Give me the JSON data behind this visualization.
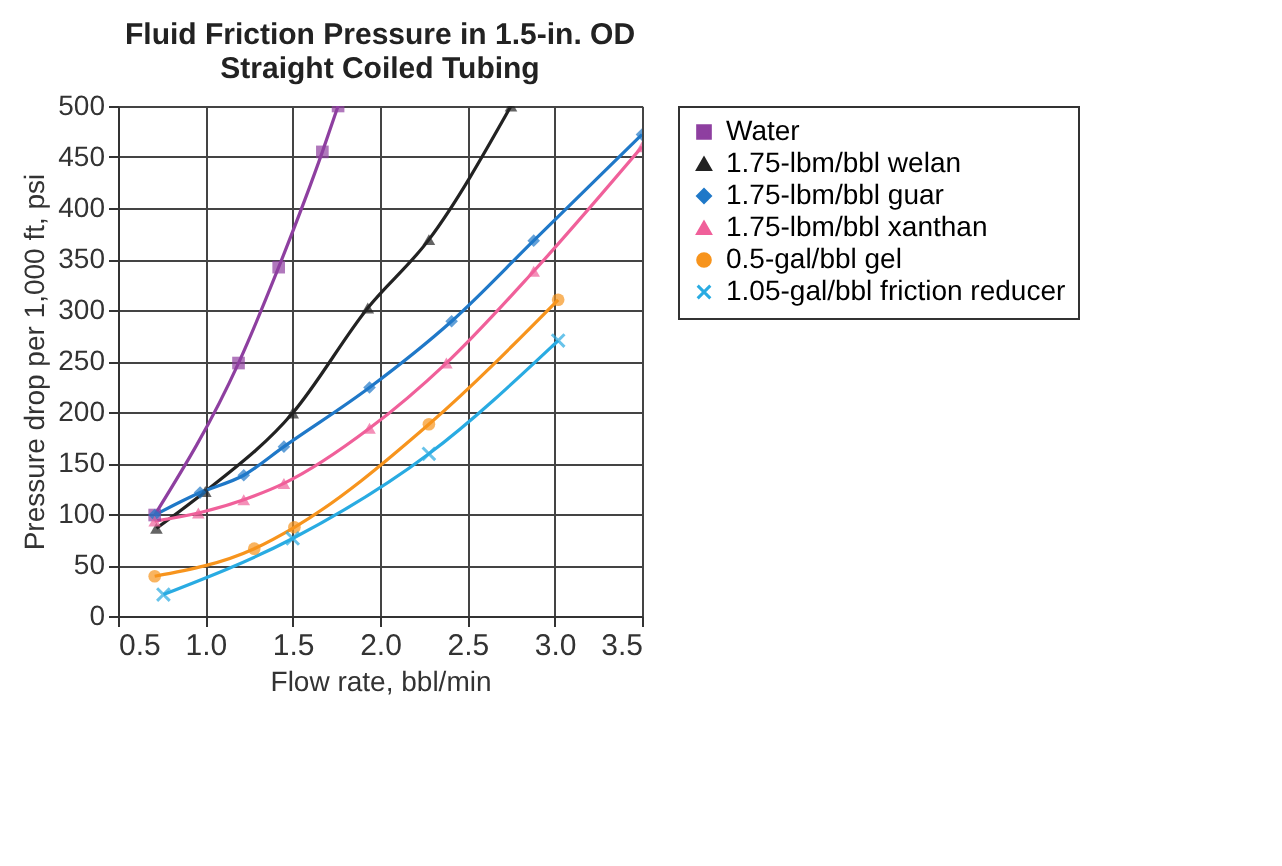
{
  "chart_data": {
    "type": "line",
    "title": "Fluid Friction Pressure in 1.5-in. OD\nStraight Coiled Tubing",
    "xlabel": "Flow rate, bbl/min",
    "ylabel": "Pressure drop per 1,000 ft, psi",
    "xlim": [
      0.5,
      3.5
    ],
    "xticks": [
      {
        "value": 0.5,
        "label": "0.5"
      },
      {
        "value": 1,
        "label": "1.0"
      },
      {
        "value": 1.5,
        "label": "1.5"
      },
      {
        "value": 2,
        "label": "2.0"
      },
      {
        "value": 2.5,
        "label": "2.5"
      },
      {
        "value": 3,
        "label": "3.0"
      },
      {
        "value": 3.5,
        "label": "3.5"
      }
    ],
    "ylim": [
      0,
      500
    ],
    "yticks": [
      0,
      50,
      100,
      150,
      200,
      250,
      300,
      350,
      400,
      450,
      500
    ],
    "grid": true,
    "legend": "right",
    "line_style": "solid",
    "series": [
      {
        "name": "Water",
        "color": "#8e3fa0",
        "marker": "square",
        "x": [
          0.71,
          1.19,
          1.42,
          1.67,
          1.76
        ],
        "values": [
          99,
          248,
          342,
          455,
          500
        ]
      },
      {
        "name": "1.75-lbm/bbl welan",
        "color": "#222222",
        "marker": "triangle",
        "x": [
          0.72,
          1.0,
          1.5,
          1.93,
          2.28,
          2.75
        ],
        "values": [
          86,
          122,
          199,
          302,
          369,
          500
        ]
      },
      {
        "name": "1.75-lbm/bbl guar",
        "color": "#1f78c8",
        "marker": "diamond",
        "x": [
          0.71,
          0.97,
          1.22,
          1.45,
          1.94,
          2.41,
          2.88,
          3.5
        ],
        "values": [
          99,
          121,
          138,
          166,
          224,
          289,
          368,
          472
        ]
      },
      {
        "name": "1.75-lbm/bbl xanthan",
        "color": "#f0609a",
        "marker": "triangle",
        "x": [
          0.71,
          0.96,
          1.22,
          1.45,
          1.94,
          2.38,
          2.88,
          3.5
        ],
        "values": [
          93,
          101,
          114,
          130,
          184,
          248,
          338,
          460
        ]
      },
      {
        "name": "0.5-gal/bbl gel",
        "color": "#f7941d",
        "marker": "circle",
        "x": [
          0.71,
          1.28,
          1.51,
          2.28,
          3.02
        ],
        "values": [
          39,
          66,
          87,
          188,
          310
        ]
      },
      {
        "name": "1.05-gal/bbl friction reducer",
        "color": "#29abe2",
        "marker": "cross",
        "x": [
          0.76,
          1.5,
          2.28,
          3.02
        ],
        "values": [
          21,
          76,
          159,
          270
        ]
      }
    ]
  }
}
